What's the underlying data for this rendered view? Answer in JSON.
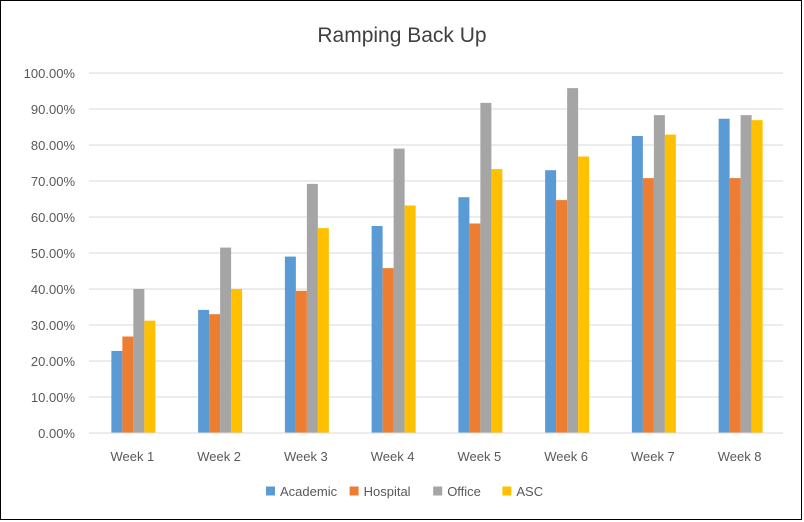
{
  "chart_data": {
    "type": "bar",
    "title": "Ramping Back Up",
    "categories": [
      "Week 1",
      "Week 2",
      "Week 3",
      "Week 4",
      "Week 5",
      "Week 6",
      "Week 7",
      "Week 8"
    ],
    "series": [
      {
        "name": "Academic",
        "color": "#5B9BD5",
        "values": [
          22.8,
          34.2,
          49.0,
          57.5,
          65.5,
          73.0,
          82.5,
          87.3
        ]
      },
      {
        "name": "Hospital",
        "color": "#ED7D31",
        "values": [
          26.8,
          33.0,
          39.5,
          45.8,
          58.2,
          64.7,
          70.8,
          70.8
        ]
      },
      {
        "name": "Office",
        "color": "#A5A5A5",
        "values": [
          40.0,
          51.5,
          69.2,
          79.0,
          91.7,
          95.8,
          88.3,
          88.3
        ]
      },
      {
        "name": "ASC",
        "color": "#FFC000",
        "values": [
          31.2,
          40.0,
          56.9,
          63.2,
          73.3,
          76.8,
          82.9,
          86.9
        ]
      }
    ],
    "ylim": [
      0,
      100
    ],
    "y_ticks": [
      "0.00%",
      "10.00%",
      "20.00%",
      "30.00%",
      "40.00%",
      "50.00%",
      "60.00%",
      "70.00%",
      "80.00%",
      "90.00%",
      "100.00%"
    ],
    "grid": true,
    "legend": "bottom"
  }
}
